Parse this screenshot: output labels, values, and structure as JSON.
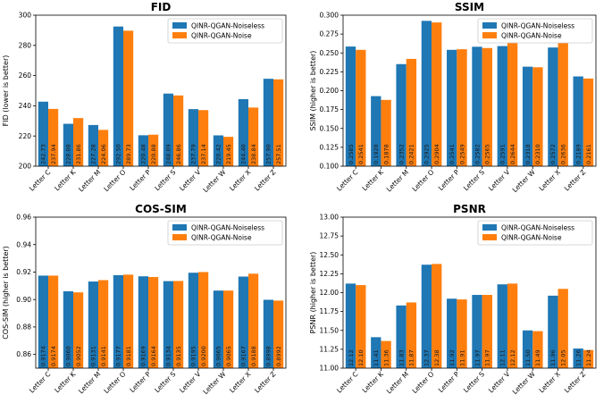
{
  "colors": {
    "noiseless": "#1f77b4",
    "noise": "#ff7f0e"
  },
  "chart_data": [
    {
      "type": "bar",
      "title": "FID",
      "ylabel": "FID (lower is better)",
      "xlabel": "",
      "ylim": [
        200,
        300
      ],
      "yticks": [
        200,
        220,
        240,
        260,
        280,
        300
      ],
      "tick_decimals": 0,
      "categories": [
        "Letter C",
        "Letter K",
        "Letter M",
        "Letter O",
        "Letter P",
        "Letter S",
        "Letter V",
        "Letter W",
        "Letter X",
        "Letter Z"
      ],
      "series": [
        {
          "name": "QINR-QGAN-Noiseless",
          "values": [
            242.73,
            228.08,
            227.28,
            292.5,
            220.48,
            248.09,
            237.79,
            220.42,
            244.4,
            257.9
          ],
          "labels": [
            "242.73",
            "228.08",
            "227.28",
            "292.50",
            "220.48",
            "248.09",
            "237.79",
            "220.42",
            "244.40",
            "257.90"
          ]
        },
        {
          "name": "QINR-QGAN-Noise",
          "values": [
            237.94,
            231.86,
            224.06,
            289.73,
            220.88,
            246.86,
            237.14,
            219.45,
            238.84,
            257.51
          ],
          "labels": [
            "237.94",
            "231.86",
            "224.06",
            "289.73",
            "220.88",
            "246.86",
            "237.14",
            "219.45",
            "238.84",
            "257.51"
          ]
        }
      ],
      "legend": "top-right"
    },
    {
      "type": "bar",
      "title": "SSIM",
      "ylabel": "SSIM (higher is better)",
      "xlabel": "",
      "ylim": [
        0.1,
        0.3
      ],
      "yticks": [
        0.1,
        0.125,
        0.15,
        0.175,
        0.2,
        0.225,
        0.25,
        0.275,
        0.3
      ],
      "tick_decimals": 3,
      "categories": [
        "Letter C",
        "Letter K",
        "Letter M",
        "Letter O",
        "Letter P",
        "Letter S",
        "Letter V",
        "Letter W",
        "Letter X",
        "Letter Z"
      ],
      "series": [
        {
          "name": "QINR-QGAN-Noiseless",
          "values": [
            0.2585,
            0.1928,
            0.2352,
            0.2925,
            0.2541,
            0.2582,
            0.2591,
            0.2318,
            0.2572,
            0.2189
          ],
          "labels": [
            "0.2585",
            "0.1928",
            "0.2352",
            "0.2925",
            "0.2541",
            "0.2582",
            "0.2591",
            "0.2318",
            "0.2572",
            "0.2189"
          ]
        },
        {
          "name": "QINR-QGAN-Noise",
          "values": [
            0.2541,
            0.1878,
            0.2421,
            0.2904,
            0.2549,
            0.2565,
            0.2644,
            0.231,
            0.2636,
            0.2161
          ],
          "labels": [
            "0.2541",
            "0.1878",
            "0.2421",
            "0.2904",
            "0.2549",
            "0.2565",
            "0.2644",
            "0.2310",
            "0.2636",
            "0.2161"
          ]
        }
      ],
      "legend": "top-right"
    },
    {
      "type": "bar",
      "title": "COS-SIM",
      "ylabel": "COS-SIM (higher is better)",
      "xlabel": "",
      "ylim": [
        0.85,
        0.96
      ],
      "yticks": [
        0.86,
        0.88,
        0.9,
        0.92,
        0.94,
        0.96
      ],
      "tick_decimals": 2,
      "categories": [
        "Letter C",
        "Letter K",
        "Letter M",
        "Letter O",
        "Letter P",
        "Letter S",
        "Letter V",
        "Letter W",
        "Letter X",
        "Letter Z"
      ],
      "series": [
        {
          "name": "QINR-QGAN-Noiseless",
          "values": [
            0.9174,
            0.906,
            0.9131,
            0.9177,
            0.9169,
            0.9134,
            0.9195,
            0.9065,
            0.9167,
            0.8998
          ],
          "labels": [
            "0.9174",
            "0.9060",
            "0.9131",
            "0.9177",
            "0.9169",
            "0.9134",
            "0.9195",
            "0.9065",
            "0.9167",
            "0.8998"
          ]
        },
        {
          "name": "QINR-QGAN-Noise",
          "values": [
            0.9174,
            0.9052,
            0.9141,
            0.9181,
            0.9164,
            0.9135,
            0.92,
            0.9065,
            0.9188,
            0.8992
          ],
          "labels": [
            "0.9174",
            "0.9052",
            "0.9141",
            "0.9181",
            "0.9164",
            "0.9135",
            "0.9200",
            "0.9065",
            "0.9188",
            "0.8992"
          ]
        }
      ],
      "legend": "top-right"
    },
    {
      "type": "bar",
      "title": "PSNR",
      "ylabel": "PSNR (higher is better)",
      "xlabel": "",
      "ylim": [
        11.0,
        13.0
      ],
      "yticks": [
        11.0,
        11.25,
        11.5,
        11.75,
        12.0,
        12.25,
        12.5,
        12.75,
        13.0
      ],
      "tick_decimals": 2,
      "categories": [
        "Letter C",
        "Letter K",
        "Letter M",
        "Letter O",
        "Letter P",
        "Letter S",
        "Letter V",
        "Letter W",
        "Letter X",
        "Letter Z"
      ],
      "series": [
        {
          "name": "QINR-QGAN-Noiseless",
          "values": [
            12.12,
            11.41,
            11.83,
            12.37,
            11.92,
            11.97,
            12.11,
            11.5,
            11.96,
            11.26
          ],
          "labels": [
            "12.12",
            "11.41",
            "11.83",
            "12.37",
            "11.92",
            "11.97",
            "12.11",
            "11.50",
            "11.96",
            "11.26"
          ]
        },
        {
          "name": "QINR-QGAN-Noise",
          "values": [
            12.1,
            11.36,
            11.87,
            12.38,
            11.91,
            11.97,
            12.12,
            11.49,
            12.05,
            11.24
          ],
          "labels": [
            "12.10",
            "11.36",
            "11.87",
            "12.38",
            "11.91",
            "11.97",
            "12.12",
            "11.49",
            "12.05",
            "11.24"
          ]
        }
      ],
      "legend": "top-right"
    }
  ]
}
